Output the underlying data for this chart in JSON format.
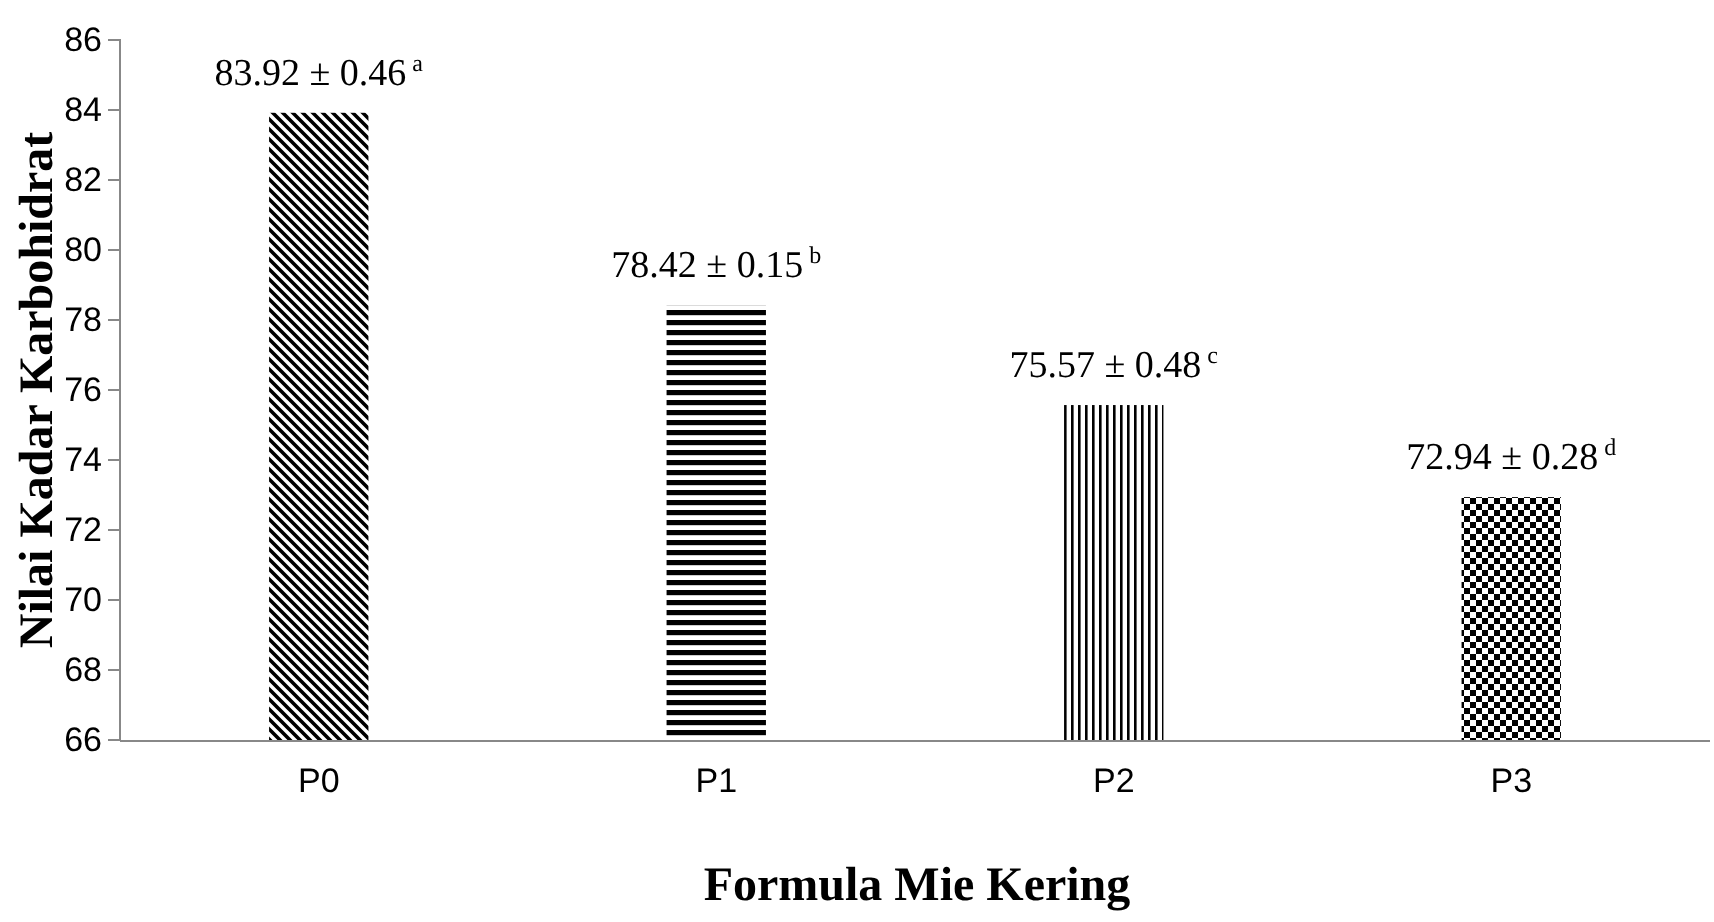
{
  "chart_data": {
    "type": "bar",
    "xlabel": "Formula Mie Kering",
    "ylabel": "Nilai Kadar Karbohidrat",
    "categories": [
      "P0",
      "P1",
      "P2",
      "P3"
    ],
    "values": [
      83.92,
      78.42,
      75.57,
      72.94
    ],
    "value_labels": [
      "83.92 ± 0.46$^{a}$",
      "78.42 ± 0.15$^{b}$",
      "75.57 ± 0.48$^{c}$",
      "72.94 ± 0.28$^{d}$"
    ],
    "colors": [
      "#000000",
      "#000000",
      "#000000",
      "#000000"
    ],
    "ylim": [
      66,
      86
    ],
    "yticks": [
      66,
      68,
      70,
      72,
      74,
      76,
      78,
      80,
      82,
      84,
      86
    ],
    "grid": false
  }
}
